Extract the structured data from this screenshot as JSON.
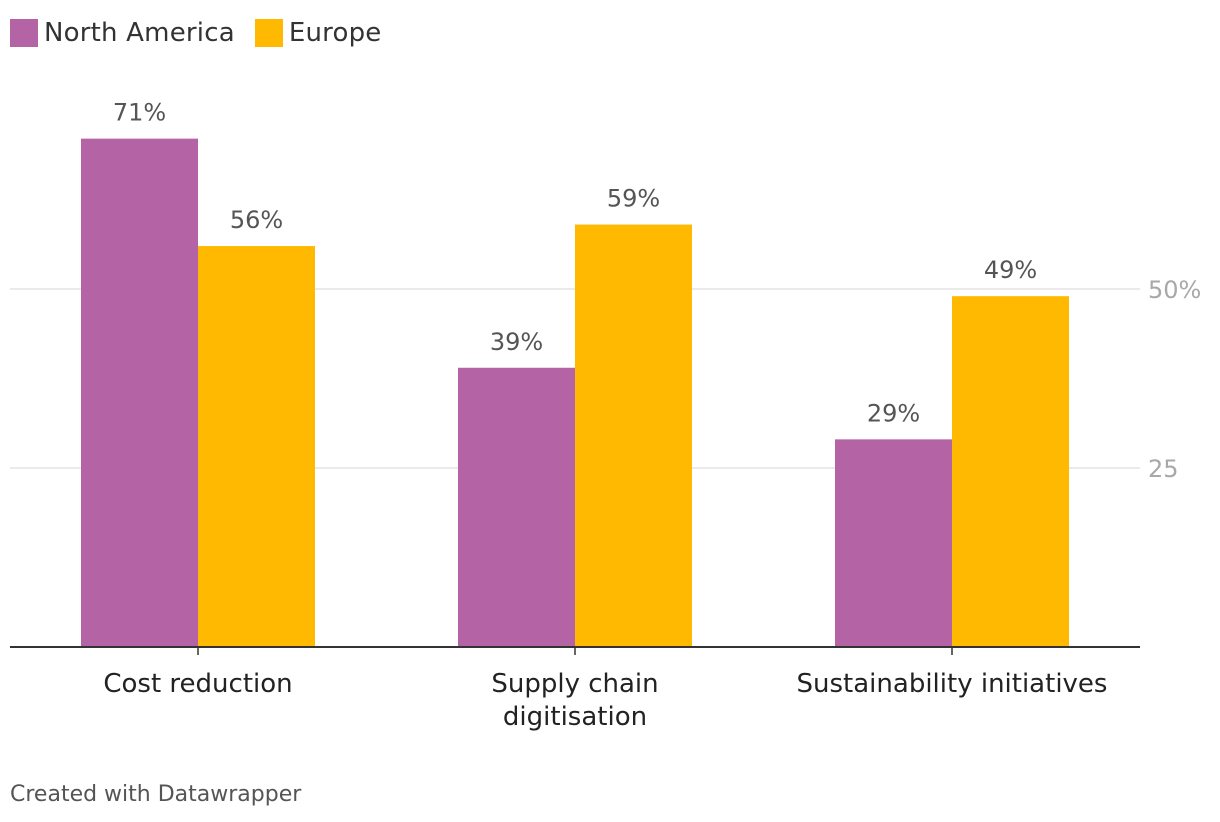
{
  "legend": [
    {
      "label": "North America",
      "color": "#b464a5"
    },
    {
      "label": "Europe",
      "color": "#ffb900"
    }
  ],
  "chart_data": {
    "type": "bar",
    "categories": [
      {
        "name": "Cost reduction",
        "lines": [
          "Cost reduction"
        ]
      },
      {
        "name": "Supply chain digitisation",
        "lines": [
          "Supply chain",
          "digitisation"
        ]
      },
      {
        "name": "Sustainability initiatives",
        "lines": [
          "Sustainability initiatives"
        ]
      }
    ],
    "series": [
      {
        "name": "North America",
        "color": "#b464a5",
        "values": [
          71,
          39,
          29
        ],
        "labels": [
          "71%",
          "39%",
          "29%"
        ]
      },
      {
        "name": "Europe",
        "color": "#ffb900",
        "values": [
          56,
          59,
          49
        ],
        "labels": [
          "56%",
          "59%",
          "49%"
        ]
      }
    ],
    "ylim": [
      0,
      75
    ],
    "yticks": [
      {
        "value": 25,
        "label": "25"
      },
      {
        "value": 50,
        "label": "50%"
      }
    ],
    "title": "",
    "xlabel": "",
    "ylabel": ""
  },
  "footer": "Created with Datawrapper"
}
